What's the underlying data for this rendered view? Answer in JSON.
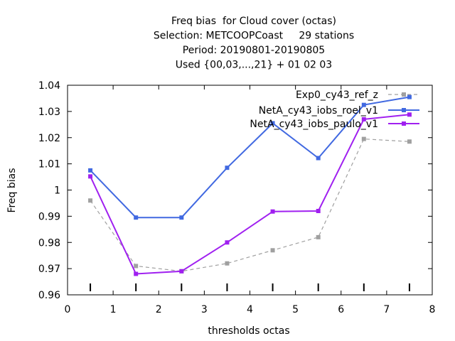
{
  "chart_data": {
    "type": "line",
    "title_lines": [
      "Freq bias  for Cloud cover (octas)",
      "Selection: METCOOPCoast     29 stations",
      "Period: 20190801-20190805",
      "Used {00,03,...,21} + 01 02 03"
    ],
    "xlabel": "thresholds octas",
    "ylabel": "Freq bias",
    "xlim": [
      0,
      8
    ],
    "ylim": [
      0.96,
      1.04
    ],
    "xticks": [
      0,
      1,
      2,
      3,
      4,
      5,
      6,
      7,
      8
    ],
    "xtick_labels": [
      "0",
      "1",
      "2",
      "3",
      "4",
      "5",
      "6",
      "7",
      "8"
    ],
    "yticks": [
      0.96,
      0.97,
      0.98,
      0.99,
      1.0,
      1.01,
      1.02,
      1.03,
      1.04
    ],
    "ytick_labels": [
      "0.96",
      "0.97",
      "0.98",
      "0.99",
      "1",
      "1.01",
      "1.02",
      "1.03",
      "1.04"
    ],
    "x": [
      0.5,
      1.5,
      2.5,
      3.5,
      4.5,
      5.5,
      6.5,
      7.5
    ],
    "series": [
      {
        "name": "Exp0_cy43_ref_z",
        "values": [
          0.996,
          0.971,
          0.969,
          0.972,
          0.977,
          0.982,
          1.0195,
          1.0185
        ],
        "color": "#a0a0a0",
        "dashed": true
      },
      {
        "name": "NetA_cy43_iobs_roel_v1",
        "values": [
          1.0075,
          0.9895,
          0.9895,
          1.0085,
          1.0255,
          1.0122,
          1.0325,
          1.0355
        ],
        "color": "#4169e1",
        "dashed": false
      },
      {
        "name": "NetA_cy43_iobs_paulo_v1",
        "values": [
          1.0052,
          0.968,
          0.969,
          0.98,
          0.9918,
          0.992,
          1.027,
          1.0288
        ],
        "color": "#a020f0",
        "dashed": false
      }
    ],
    "legend_position": "top-right",
    "grid": false
  }
}
